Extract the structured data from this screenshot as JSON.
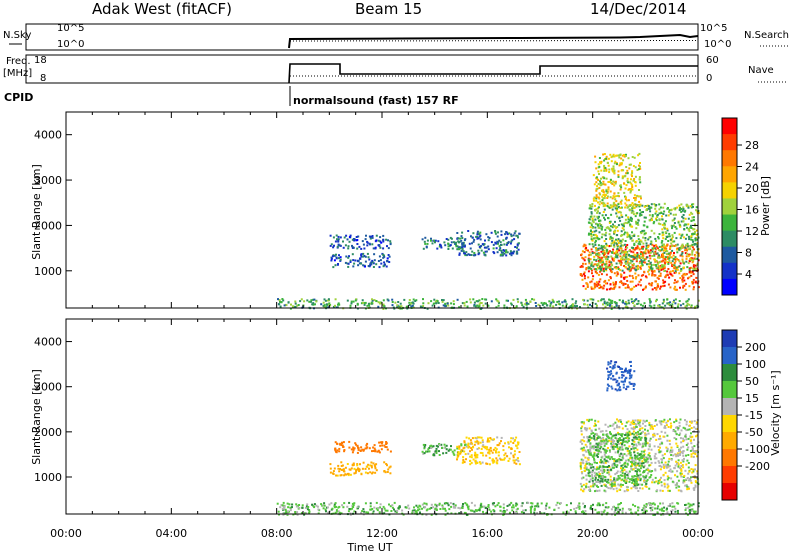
{
  "header": {
    "title": "Adak West (fitACF)",
    "beam": "Beam 15",
    "date": "14/Dec/2014"
  },
  "status_panels": {
    "nsky_label": "N.Sky",
    "nsearch_label": "N.Search",
    "noise_ticks": [
      "10^5",
      "10^0"
    ],
    "freq_label_1": "Freq.",
    "freq_label_2": "[MHz]",
    "freq_ticks": [
      "18",
      "8"
    ],
    "nave_label": "Nave",
    "nave_ticks": [
      "60",
      "0"
    ],
    "cpid_label": "CPID",
    "cpid_text": "normalsound (fast) 157 RF"
  },
  "power_colorbar": {
    "label": "Power [dB]",
    "ticks": [
      "28",
      "24",
      "20",
      "16",
      "12",
      "8",
      "4"
    ],
    "colors": [
      "#ff0000",
      "#ff3c00",
      "#ff7800",
      "#ffa500",
      "#f5d200",
      "#a0d23c",
      "#3cb43c",
      "#2d8c64",
      "#1e5aa0",
      "#1432c8",
      "#0000ff"
    ]
  },
  "velocity_colorbar": {
    "label": "Velocity [m s⁻¹]",
    "ticks": [
      "200",
      "100",
      "50",
      "15",
      "-15",
      "-50",
      "-100",
      "-200"
    ],
    "colors": [
      "#1e3cb4",
      "#2864c8",
      "#2d8c3c",
      "#55c83c",
      "#b4b4b4",
      "#ffd700",
      "#ffaa00",
      "#ff7800",
      "#ff3c00",
      "#e60000"
    ]
  },
  "chart_data": [
    {
      "type": "heatmap",
      "panel": "power",
      "ylabel": "Slant Range [km]",
      "ylim": [
        180,
        4500
      ],
      "y_ticks": [
        "1000",
        "2000",
        "3000",
        "4000"
      ],
      "x_ticks": [
        "00:00",
        "04:00",
        "08:00",
        "12:00",
        "16:00",
        "20:00",
        "00:00"
      ],
      "xlim_hours": [
        0,
        24
      ],
      "patches": [
        {
          "x": [
            8,
            24
          ],
          "y": [
            180,
            400
          ],
          "value_dB": 12
        },
        {
          "x": [
            10,
            12.3
          ],
          "y": [
            1500,
            1800
          ],
          "value_dB": 6
        },
        {
          "x": [
            10,
            12.3
          ],
          "y": [
            1100,
            1400
          ],
          "value_dB": 6
        },
        {
          "x": [
            13.5,
            15.3
          ],
          "y": [
            1500,
            1750
          ],
          "value_dB": 8
        },
        {
          "x": [
            14.8,
            17.2
          ],
          "y": [
            1350,
            1900
          ],
          "value_dB": 7
        },
        {
          "x": [
            19.5,
            24
          ],
          "y": [
            600,
            1600
          ],
          "value_dB": 27
        },
        {
          "x": [
            19.8,
            24
          ],
          "y": [
            1000,
            2500
          ],
          "value_dB": 14
        },
        {
          "x": [
            20,
            21.8
          ],
          "y": [
            2400,
            3600
          ],
          "value_dB": 18
        }
      ]
    },
    {
      "type": "heatmap",
      "panel": "velocity",
      "ylabel": "Slant Range [km]",
      "xlabel": "Time UT",
      "ylim": [
        180,
        4500
      ],
      "y_ticks": [
        "1000",
        "2000",
        "3000",
        "4000"
      ],
      "x_ticks": [
        "00:00",
        "04:00",
        "08:00",
        "12:00",
        "16:00",
        "20:00",
        "00:00"
      ],
      "xlim_hours": [
        0,
        24
      ],
      "patches": [
        {
          "x": [
            8,
            24
          ],
          "y": [
            180,
            450
          ],
          "value_ms": 30
        },
        {
          "x": [
            10,
            12.3
          ],
          "y": [
            1550,
            1800
          ],
          "value_ms": -150
        },
        {
          "x": [
            10,
            12.3
          ],
          "y": [
            1050,
            1350
          ],
          "value_ms": -70
        },
        {
          "x": [
            13.5,
            15.3
          ],
          "y": [
            1500,
            1750
          ],
          "value_ms": 40
        },
        {
          "x": [
            14.8,
            17.2
          ],
          "y": [
            1300,
            1900
          ],
          "value_ms": -40
        },
        {
          "x": [
            19.5,
            24
          ],
          "y": [
            700,
            2300
          ],
          "value_ms": 0
        },
        {
          "x": [
            19.8,
            22
          ],
          "y": [
            800,
            2000
          ],
          "value_ms": 40
        },
        {
          "x": [
            20.5,
            21.6
          ],
          "y": [
            2900,
            3600
          ],
          "value_ms": 180
        }
      ]
    }
  ]
}
